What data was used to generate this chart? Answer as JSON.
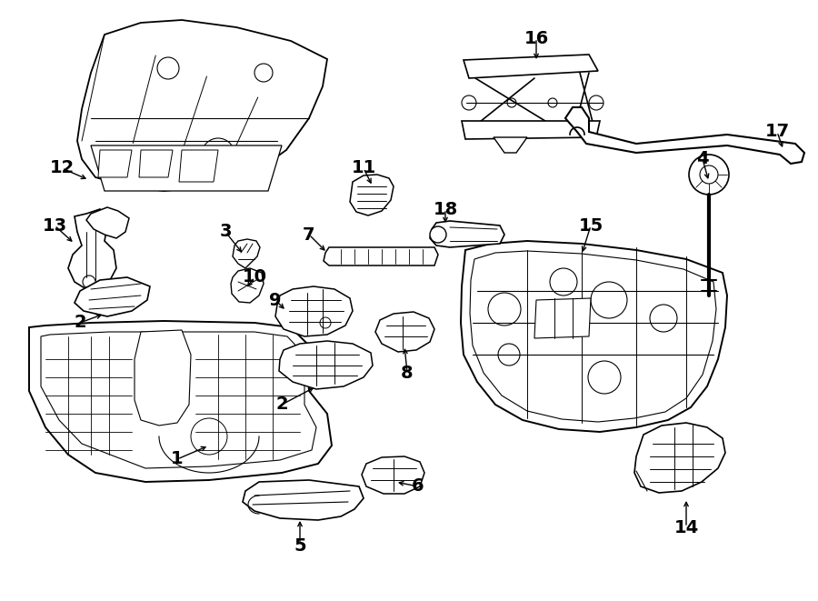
{
  "background_color": "#ffffff",
  "fig_width": 9.0,
  "fig_height": 6.61,
  "dpi": 100
}
